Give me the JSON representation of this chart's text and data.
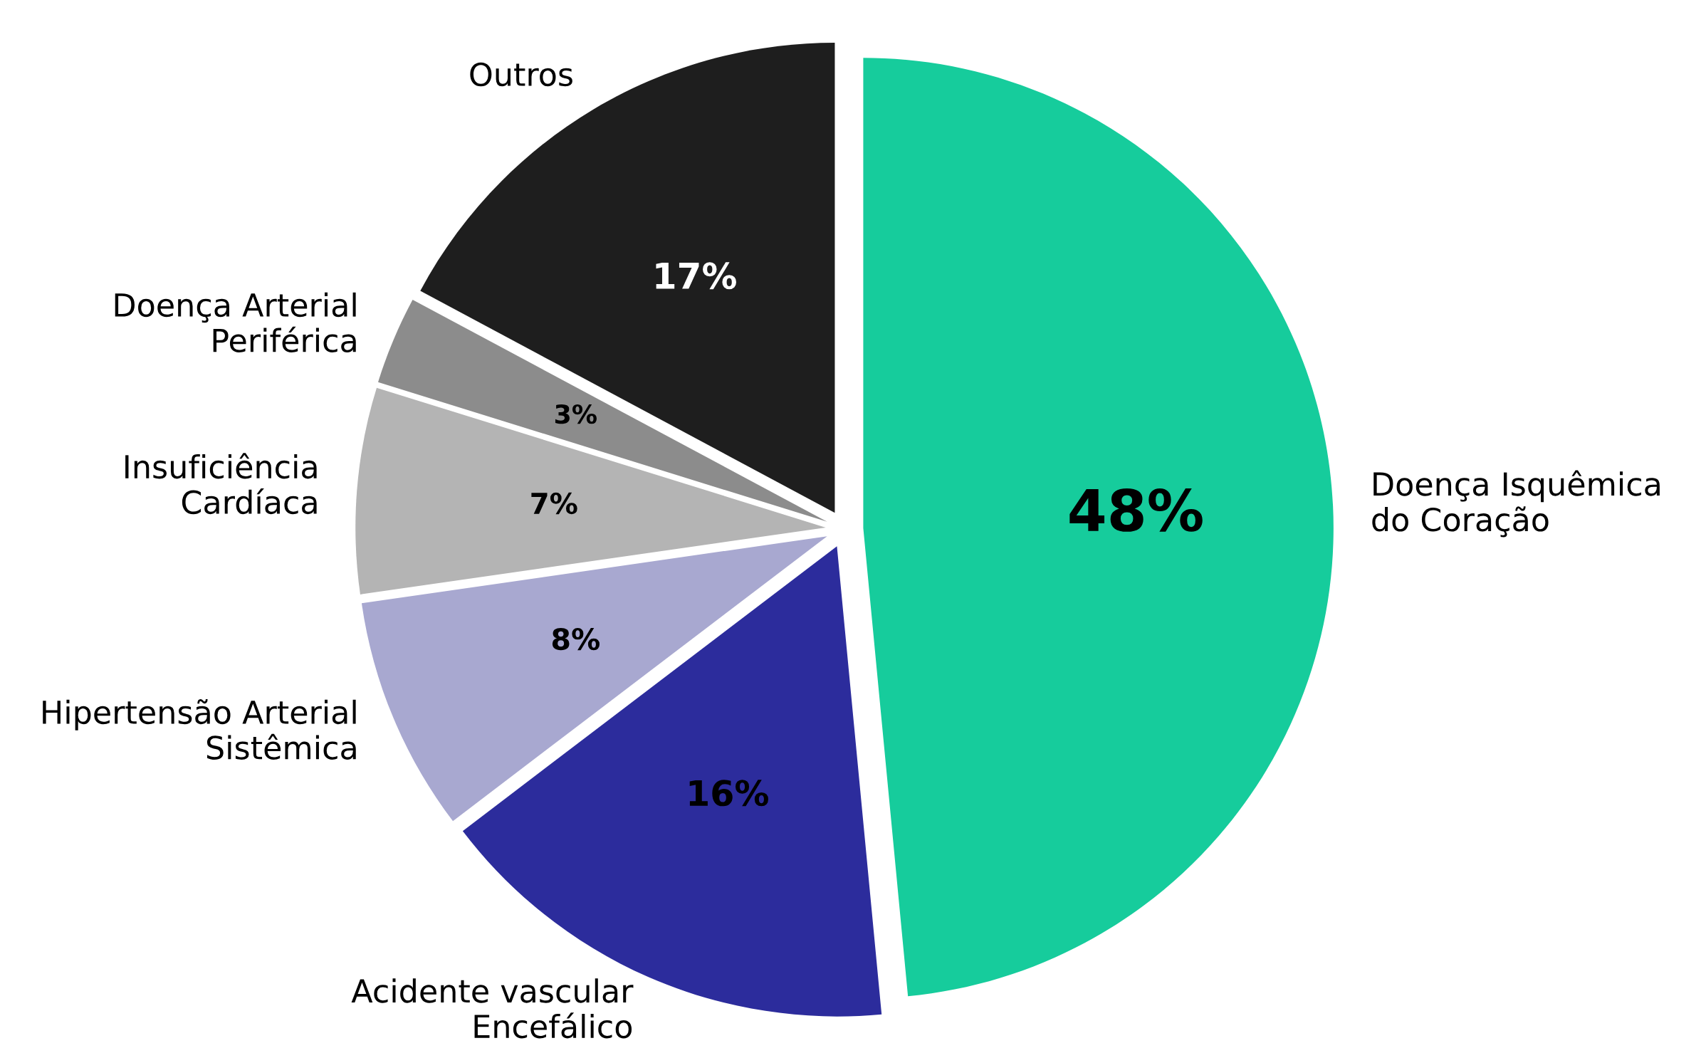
{
  "chart_data": {
    "type": "pie",
    "categories": [
      "Doença Isquêmica\ndo Coração",
      "Acidente vascular\nEncefálico",
      "Hipertensão Arterial\nSistêmica",
      "Insuficiência\nCardíaca",
      "Doença Arterial\nPeriférica",
      "Outros"
    ],
    "values": [
      48,
      16,
      8,
      7,
      3,
      17
    ],
    "colors": [
      "#16cc9c",
      "#2c2c9c",
      "#a8a8d0",
      "#b4b4b4",
      "#8c8c8c",
      "#1e1e1e"
    ],
    "value_labels": [
      "48%",
      "16%",
      "8%",
      "7%",
      "3%",
      "17%"
    ]
  }
}
